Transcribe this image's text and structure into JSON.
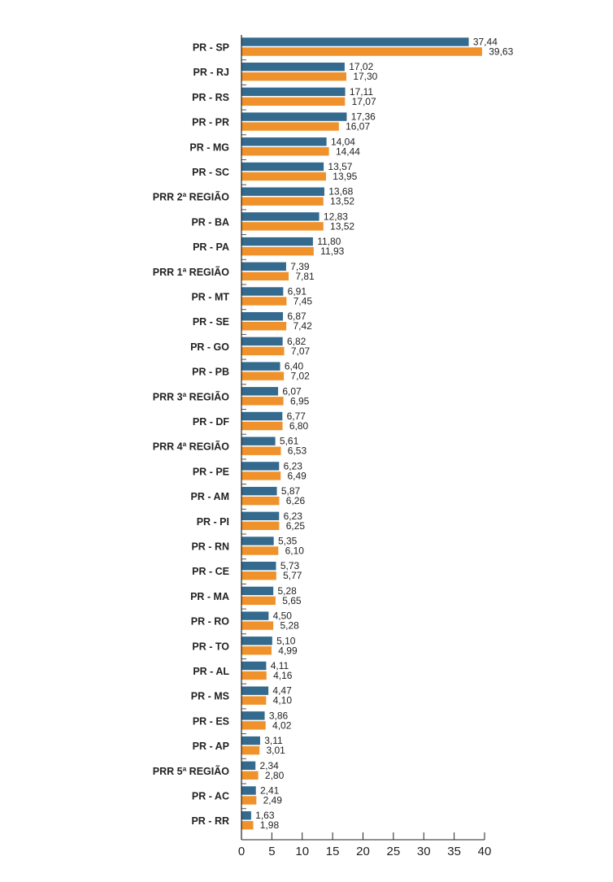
{
  "chart_data": {
    "type": "bar",
    "orientation": "horizontal",
    "title": "",
    "xlabel": "",
    "ylabel": "",
    "xlim": [
      0,
      40
    ],
    "xticks": [
      0,
      5,
      10,
      15,
      20,
      25,
      30,
      35,
      40
    ],
    "grid": false,
    "legend": "none",
    "colors": [
      "#336a8e",
      "#f0922b"
    ],
    "categories": [
      "PR - SP",
      "PR - RJ",
      "PR - RS",
      "PR - PR",
      "PR - MG",
      "PR - SC",
      "PRR 2ª REGIÃO",
      "PR - BA",
      "PR - PA",
      "PRR 1ª REGIÃO",
      "PR - MT",
      "PR - SE",
      "PR - GO",
      "PR - PB",
      "PRR 3ª REGIÃO",
      "PR - DF",
      "PRR 4ª REGIÃO",
      "PR - PE",
      "PR - AM",
      "PR - PI",
      "PR - RN",
      "PR - CE",
      "PR - MA",
      "PR - RO",
      "PR - TO",
      "PR - AL",
      "PR - MS",
      "PR - ES",
      "PR - AP",
      "PRR 5ª REGIÃO",
      "PR - AC",
      "PR - RR"
    ],
    "series": [
      {
        "values": [
          37.44,
          17.02,
          17.11,
          17.36,
          14.04,
          13.57,
          13.68,
          12.83,
          11.8,
          7.39,
          6.91,
          6.87,
          6.82,
          6.4,
          6.07,
          6.77,
          5.61,
          6.23,
          5.87,
          6.23,
          5.35,
          5.73,
          5.28,
          4.5,
          5.1,
          4.11,
          4.47,
          3.86,
          3.11,
          2.34,
          2.41,
          1.63
        ],
        "labels": [
          "37,44",
          "17,02",
          "17,11",
          "17,36",
          "14,04",
          "13,57",
          "13,68",
          "12,83",
          "11,80",
          "7,39",
          "6,91",
          "6,87",
          "6,82",
          "6,40",
          "6,07",
          "6,77",
          "5,61",
          "6,23",
          "5,87",
          "6,23",
          "5,35",
          "5,73",
          "5,28",
          "4,50",
          "5,10",
          "4,11",
          "4,47",
          "3,86",
          "3,11",
          "2,34",
          "2,41",
          "1,63"
        ]
      },
      {
        "values": [
          39.63,
          17.3,
          17.07,
          16.07,
          14.44,
          13.95,
          13.52,
          13.52,
          11.93,
          7.81,
          7.45,
          7.42,
          7.07,
          7.02,
          6.95,
          6.8,
          6.53,
          6.49,
          6.26,
          6.25,
          6.1,
          5.77,
          5.65,
          5.28,
          4.99,
          4.16,
          4.1,
          4.02,
          3.01,
          2.8,
          2.49,
          1.98
        ],
        "labels": [
          "39,63",
          "17,30",
          "17,07",
          "16,07",
          "14,44",
          "13,95",
          "13,52",
          "13,52",
          "11,93",
          "7,81",
          "7,45",
          "7,42",
          "7,07",
          "7,02",
          "6,95",
          "6,80",
          "6,53",
          "6,49",
          "6,26",
          "6,25",
          "6,10",
          "5,77",
          "5,65",
          "5,28",
          "4,99",
          "4,16",
          "4,10",
          "4,02",
          "3,01",
          "2,80",
          "2,49",
          "1,98"
        ]
      }
    ]
  }
}
